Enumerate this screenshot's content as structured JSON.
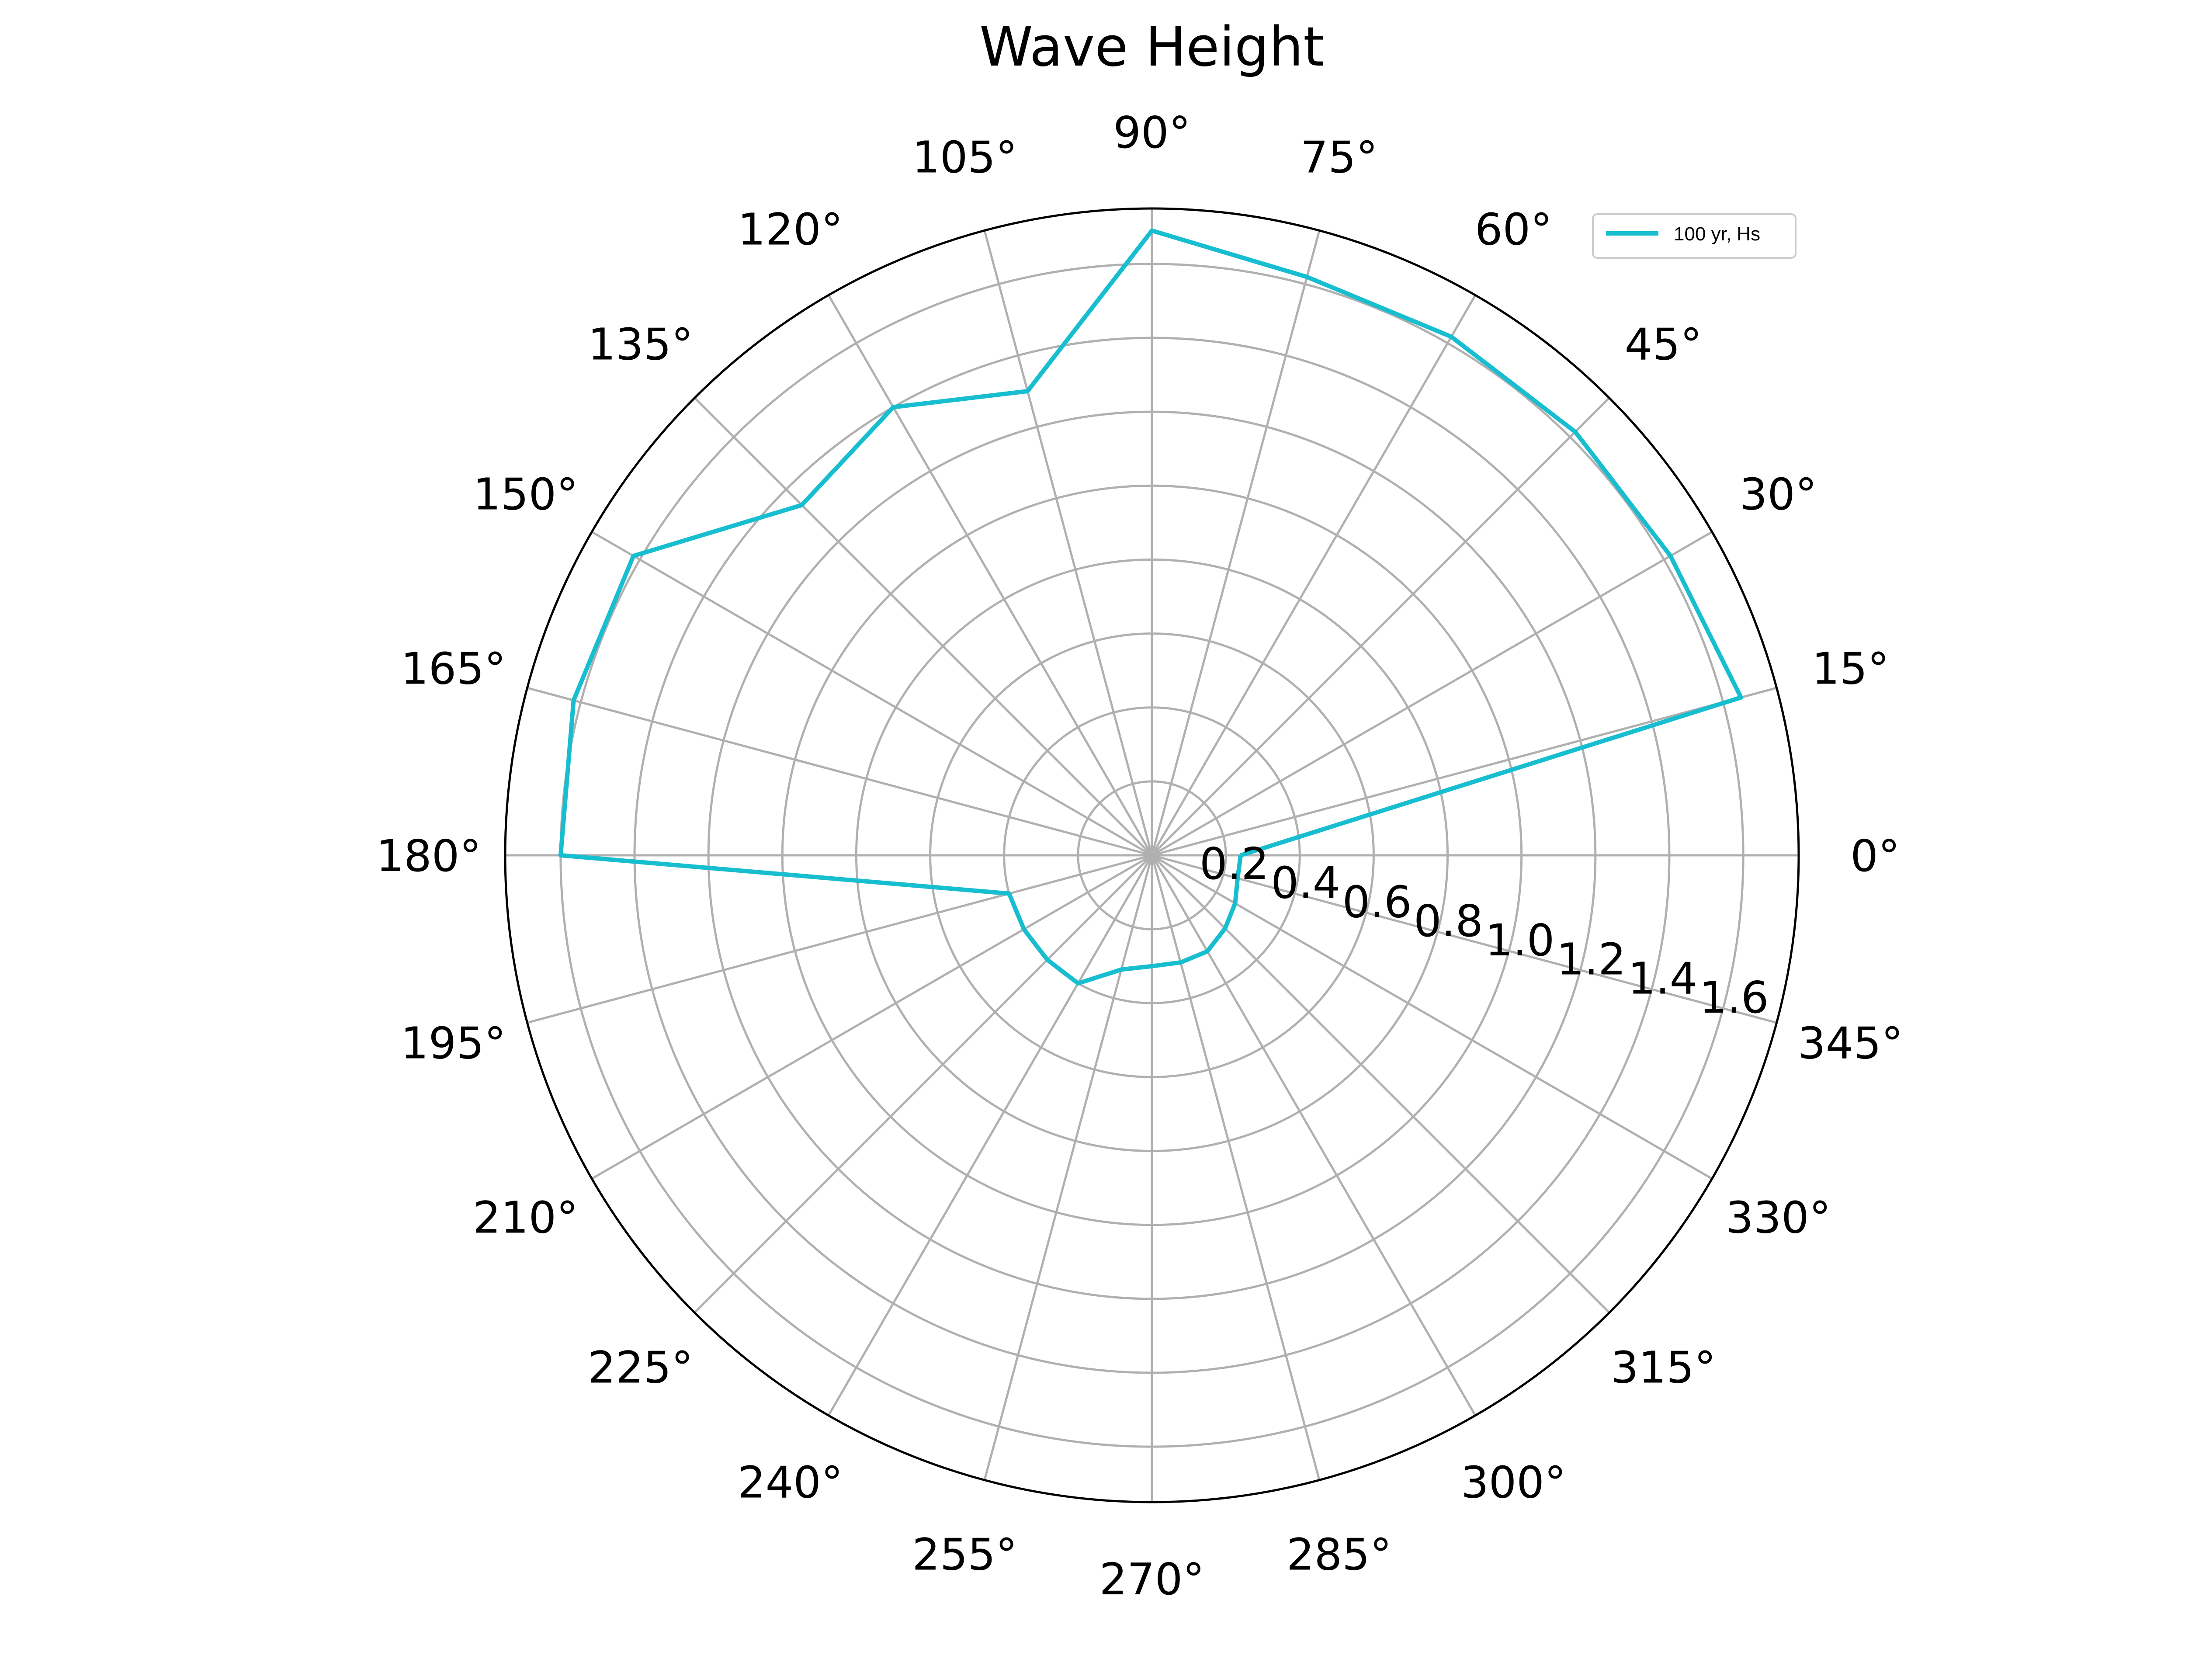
{
  "chart_data": {
    "type": "line",
    "projection": "polar",
    "title": "Wave Height",
    "angle_unit": "degrees",
    "angle_ticks": [
      0,
      15,
      30,
      45,
      60,
      75,
      90,
      105,
      120,
      135,
      150,
      165,
      180,
      195,
      210,
      225,
      240,
      255,
      270,
      285,
      300,
      315,
      330,
      345
    ],
    "angle_tick_labels": [
      "0°",
      "15°",
      "30°",
      "45°",
      "60°",
      "75°",
      "90°",
      "105°",
      "120°",
      "135°",
      "150°",
      "165°",
      "180°",
      "195°",
      "210°",
      "225°",
      "240°",
      "255°",
      "270°",
      "285°",
      "300°",
      "315°",
      "330°",
      "345°"
    ],
    "r_ticks": [
      0.2,
      0.4,
      0.6,
      0.8,
      1.0,
      1.2,
      1.4,
      1.6
    ],
    "r_tick_labels": [
      "0.2",
      "0.4",
      "0.6",
      "0.8",
      "1.0",
      "1.2",
      "1.4",
      "1.6"
    ],
    "r_label_angle_deg": 345,
    "rlim": [
      0,
      1.75
    ],
    "grid": true,
    "legend": {
      "position": "top-right",
      "entries": [
        "100 yr, Hs"
      ]
    },
    "colors": {
      "series": "#17becf",
      "grid": "#b0b0b0",
      "frame": "#000000"
    },
    "series": [
      {
        "name": "100 yr, Hs",
        "theta": [
          0,
          15,
          30,
          45,
          60,
          75,
          90,
          105,
          120,
          135,
          150,
          165,
          180,
          195,
          210,
          225,
          240,
          255,
          270,
          285,
          300,
          315,
          330,
          345
        ],
        "r": [
          0.24,
          1.65,
          1.62,
          1.62,
          1.62,
          1.62,
          1.69,
          1.3,
          1.4,
          1.34,
          1.62,
          1.62,
          1.6,
          0.4,
          0.4,
          0.4,
          0.4,
          0.32,
          0.3,
          0.3,
          0.3,
          0.28,
          0.26,
          0.24
        ]
      }
    ]
  }
}
